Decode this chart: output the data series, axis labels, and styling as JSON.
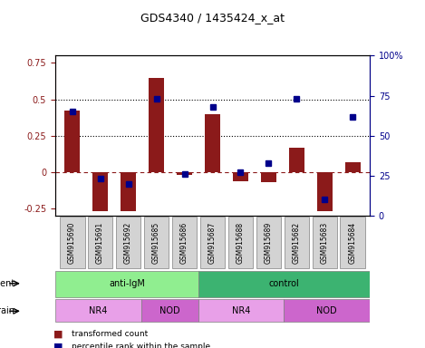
{
  "title": "GDS4340 / 1435424_x_at",
  "samples": [
    "GSM915690",
    "GSM915691",
    "GSM915692",
    "GSM915685",
    "GSM915686",
    "GSM915687",
    "GSM915688",
    "GSM915689",
    "GSM915682",
    "GSM915683",
    "GSM915684"
  ],
  "bar_values": [
    0.42,
    -0.27,
    -0.27,
    0.65,
    -0.02,
    0.4,
    -0.06,
    -0.07,
    0.17,
    -0.27,
    0.07
  ],
  "dot_values": [
    0.65,
    0.23,
    0.2,
    0.73,
    0.26,
    0.68,
    0.27,
    0.33,
    0.73,
    0.1,
    0.62
  ],
  "bar_color": "#8B1A1A",
  "dot_color": "#00008B",
  "ylim": [
    -0.3,
    0.8
  ],
  "y2lim": [
    0,
    100
  ],
  "yticks_left": [
    -0.25,
    0.0,
    0.25,
    0.5,
    0.75
  ],
  "yticks_right": [
    0,
    25,
    50,
    75,
    100
  ],
  "hlines": [
    0.25,
    0.5
  ],
  "agent_labels": [
    {
      "label": "anti-IgM",
      "start": 0,
      "end": 5,
      "color": "#90EE90"
    },
    {
      "label": "control",
      "start": 5,
      "end": 11,
      "color": "#3CB371"
    }
  ],
  "strain_segments": [
    {
      "label": "NR4",
      "start": 0,
      "end": 3,
      "facecolor": "#E8A0E8"
    },
    {
      "label": "NOD",
      "start": 3,
      "end": 5,
      "facecolor": "#CC66CC"
    },
    {
      "label": "NR4",
      "start": 5,
      "end": 8,
      "facecolor": "#E8A0E8"
    },
    {
      "label": "NOD",
      "start": 8,
      "end": 11,
      "facecolor": "#CC66CC"
    }
  ],
  "legend_bar_label": "transformed count",
  "legend_dot_label": "percentile rank within the sample",
  "agent_row_label": "agent",
  "strain_row_label": "strain",
  "left_axis_color": "#8B1A1A",
  "right_axis_color": "#00008B"
}
